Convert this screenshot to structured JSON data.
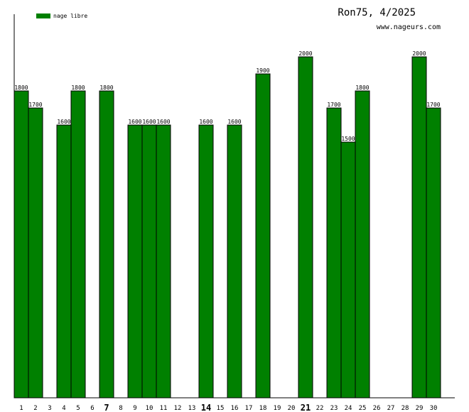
{
  "chart_data": {
    "type": "bar",
    "title": "Ron75, 4/2025",
    "subtitle": "www.nageurs.com",
    "legend": {
      "entries": [
        "nage libre"
      ],
      "placement": "top-left",
      "color": "#008000"
    },
    "ylim": [
      0,
      2250
    ],
    "grid": false,
    "categories": [
      "1",
      "2",
      "3",
      "4",
      "5",
      "6",
      "7",
      "8",
      "9",
      "10",
      "11",
      "12",
      "13",
      "14",
      "15",
      "16",
      "17",
      "18",
      "19",
      "20",
      "21",
      "22",
      "23",
      "24",
      "25",
      "26",
      "27",
      "28",
      "29",
      "30"
    ],
    "emphasized_categories": [
      "7",
      "14",
      "21"
    ],
    "series": [
      {
        "name": "nage libre",
        "color": "#008000",
        "values": [
          1800,
          1700,
          null,
          1600,
          1800,
          null,
          1800,
          null,
          1600,
          1600,
          1600,
          null,
          null,
          1600,
          null,
          1600,
          null,
          1900,
          null,
          null,
          2000,
          null,
          1700,
          1500,
          1800,
          null,
          null,
          null,
          2000,
          1700
        ]
      }
    ]
  }
}
